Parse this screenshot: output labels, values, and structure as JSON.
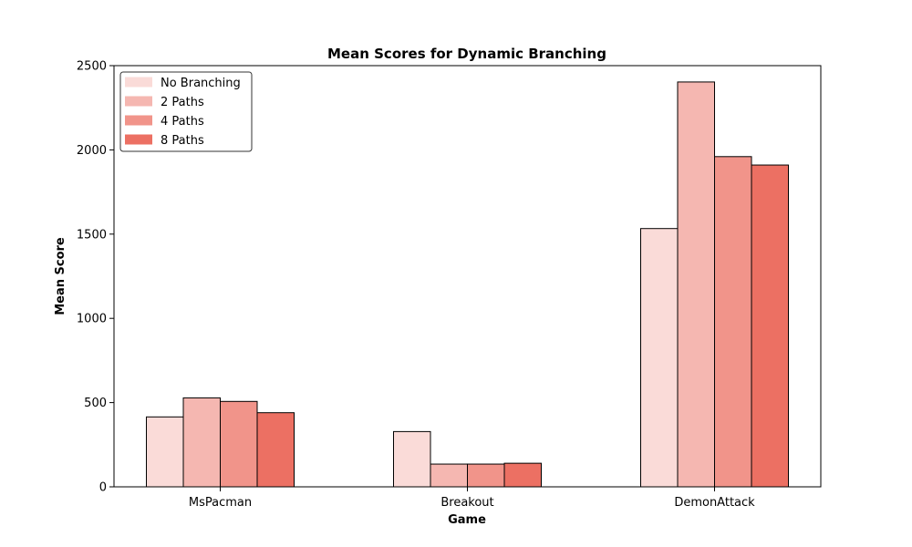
{
  "chart_data": {
    "type": "bar",
    "title": "Mean Scores for Dynamic Branching",
    "xlabel": "Game",
    "ylabel": "Mean Score",
    "categories": [
      "MsPacman",
      "Breakout",
      "DemonAttack"
    ],
    "series": [
      {
        "name": "No Branching",
        "color": "#fadbd8",
        "values": [
          415,
          328,
          1533
        ]
      },
      {
        "name": "2 Paths",
        "color": "#f5b7b1",
        "values": [
          528,
          135,
          2403
        ]
      },
      {
        "name": "4 Paths",
        "color": "#f1948a",
        "values": [
          507,
          135,
          1960
        ]
      },
      {
        "name": "8 Paths",
        "color": "#ec7063",
        "values": [
          440,
          140,
          1910
        ]
      }
    ],
    "ylim": [
      0,
      2500
    ],
    "yticks": [
      0,
      500,
      1000,
      1500,
      2000,
      2500
    ],
    "grid": false,
    "legend_position": "top-left"
  }
}
